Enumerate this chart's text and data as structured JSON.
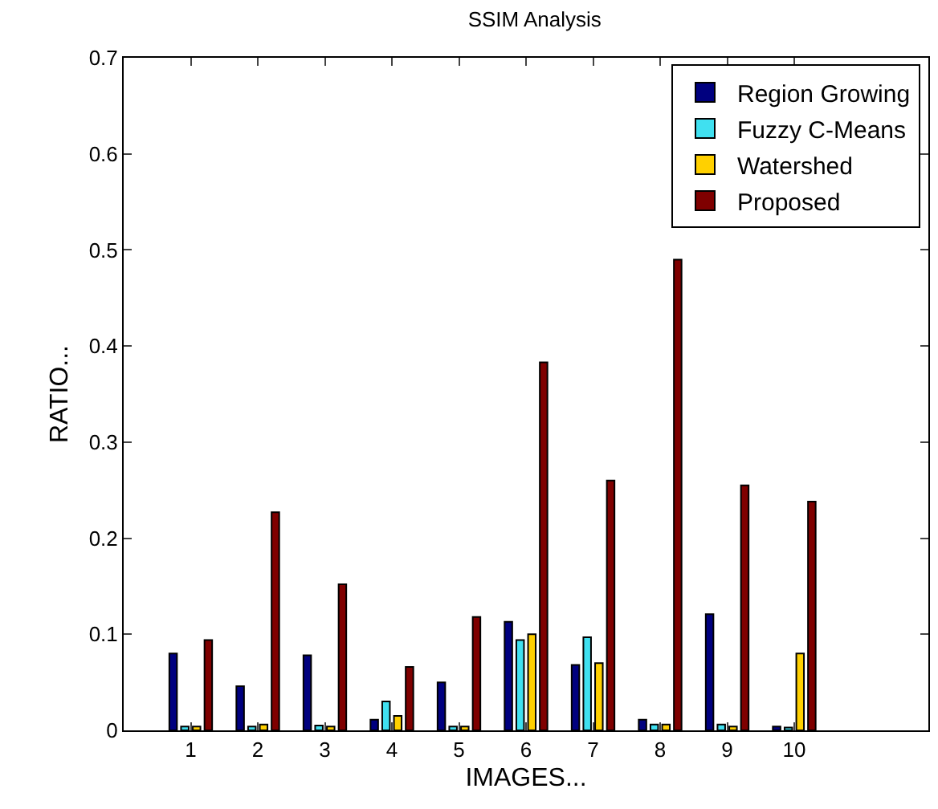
{
  "chart_data": {
    "type": "bar",
    "title": "SSIM Analysis",
    "xlabel": "IMAGES...",
    "ylabel": "RATIO...",
    "x": [
      1,
      2,
      3,
      4,
      5,
      6,
      7,
      8,
      9,
      10
    ],
    "series": [
      {
        "name": "Region Growing",
        "color": "#00007f",
        "values": [
          0.08,
          0.046,
          0.078,
          0.011,
          0.05,
          0.113,
          0.068,
          0.011,
          0.121,
          0.004
        ]
      },
      {
        "name": "Fuzzy C-Means",
        "color": "#40e0f0",
        "values": [
          0.004,
          0.004,
          0.005,
          0.03,
          0.004,
          0.094,
          0.097,
          0.006,
          0.006,
          0.003
        ]
      },
      {
        "name": "Watershed",
        "color": "#ffd000",
        "values": [
          0.004,
          0.006,
          0.004,
          0.015,
          0.004,
          0.1,
          0.07,
          0.006,
          0.004,
          0.08
        ]
      },
      {
        "name": "Proposed",
        "color": "#7f0000",
        "values": [
          0.094,
          0.227,
          0.152,
          0.066,
          0.118,
          0.383,
          0.26,
          0.49,
          0.255,
          0.238
        ]
      }
    ],
    "xlim": [
      0,
      12
    ],
    "xticks": [
      1,
      2,
      3,
      4,
      5,
      6,
      7,
      8,
      9,
      10
    ],
    "ylim": [
      0,
      0.7
    ],
    "yticks": [
      0,
      0.1,
      0.2,
      0.3,
      0.4,
      0.5,
      0.6,
      0.7
    ],
    "grid": false,
    "legend": "top right"
  }
}
